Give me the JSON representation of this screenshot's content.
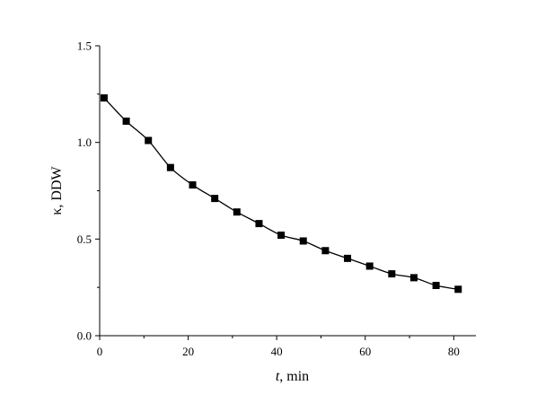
{
  "chart_data": {
    "type": "line",
    "xlabel_italic": "t",
    "xlabel_rest": ", min",
    "ylabel": "κ, DDW",
    "xlim": [
      0,
      85
    ],
    "ylim": [
      0.0,
      1.5
    ],
    "xticks": [
      0,
      20,
      40,
      60,
      80
    ],
    "xtick_labels": [
      "0",
      "20",
      "40",
      "60",
      "80"
    ],
    "yticks": [
      0.0,
      0.5,
      1.0,
      1.5
    ],
    "ytick_labels": [
      "0.0",
      "0.5",
      "1.0",
      "1.5"
    ],
    "grid": false,
    "series": [
      {
        "marker": "square",
        "color": "#000000",
        "x": [
          1,
          6,
          11,
          16,
          21,
          26,
          31,
          36,
          41,
          46,
          51,
          56,
          61,
          66,
          71,
          76,
          81
        ],
        "y": [
          1.23,
          1.11,
          1.01,
          0.87,
          0.78,
          0.71,
          0.64,
          0.58,
          0.52,
          0.49,
          0.44,
          0.4,
          0.36,
          0.32,
          0.3,
          0.26,
          0.24
        ]
      }
    ]
  }
}
